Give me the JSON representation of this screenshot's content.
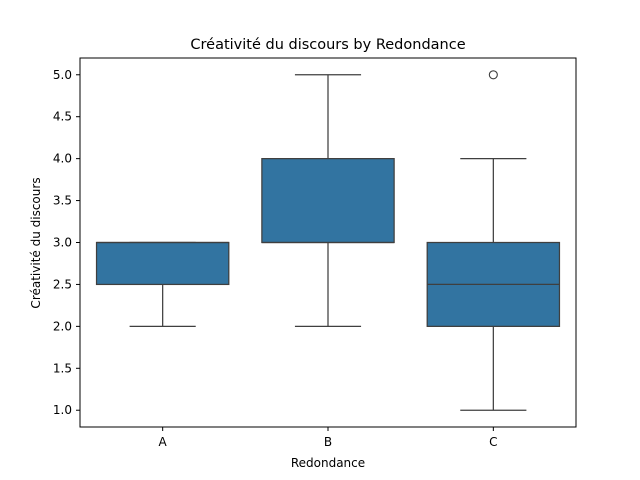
{
  "chart_data": {
    "type": "box",
    "title": "Créativité du discours by Redondance",
    "xlabel": "Redondance",
    "ylabel": "Créativité du discours",
    "categories": [
      "A",
      "B",
      "C"
    ],
    "boxes": [
      {
        "category": "A",
        "whisker_low": 2.0,
        "q1": 2.5,
        "median": 3.0,
        "q3": 3.0,
        "whisker_high": 3.0,
        "outliers": []
      },
      {
        "category": "B",
        "whisker_low": 2.0,
        "q1": 3.0,
        "median": 3.0,
        "q3": 4.0,
        "whisker_high": 5.0,
        "outliers": []
      },
      {
        "category": "C",
        "whisker_low": 1.0,
        "q1": 2.0,
        "median": 2.5,
        "q3": 3.0,
        "whisker_high": 4.0,
        "outliers": [
          5.0
        ]
      }
    ],
    "yticks": [
      "1.0",
      "1.5",
      "2.0",
      "2.5",
      "3.0",
      "3.5",
      "4.0",
      "4.5",
      "5.0"
    ],
    "ylim": [
      0.8,
      5.2
    ],
    "grid": false,
    "colors": {
      "box_fill": "#3274a1",
      "line": "#3f3f3f",
      "axes": "#000000"
    }
  }
}
